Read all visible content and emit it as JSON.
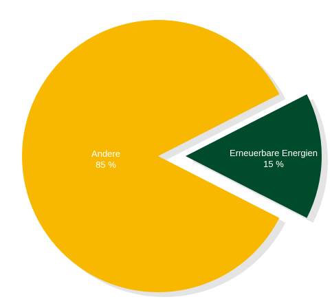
{
  "chart_data": {
    "type": "pie",
    "categories": [
      "Andere",
      "Erneuerbare Energien"
    ],
    "values": [
      85,
      15
    ],
    "labels": [
      "85 %",
      "15 %"
    ],
    "colors": [
      "#F9B800",
      "#004B2C"
    ],
    "shadow_color": "#E4E4E4",
    "exploded": [
      "Erneuerbare Energien"
    ],
    "title": "",
    "legend": "none"
  }
}
